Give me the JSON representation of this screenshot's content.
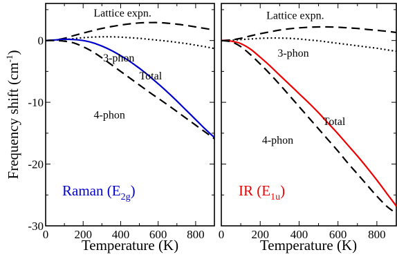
{
  "chart_data": [
    {
      "type": "line",
      "panel_label": "Raman (E",
      "panel_label_sub": "2g",
      "panel_label_close": ")",
      "panel_color": "#0000cc",
      "xlabel": "Temperature (K)",
      "ylabel": "Frequency shift (cm",
      "ylabel_sup": "-1",
      "ylabel_close": ")",
      "xlim": [
        0,
        900
      ],
      "ylim": [
        -30,
        6
      ],
      "xticks": [
        0,
        200,
        400,
        600,
        800
      ],
      "yticks": [
        -30,
        -20,
        -10,
        0
      ],
      "x": [
        0,
        50,
        100,
        150,
        200,
        250,
        300,
        350,
        400,
        450,
        500,
        550,
        600,
        650,
        700,
        750,
        800,
        850,
        900
      ],
      "series": [
        {
          "name": "Lattice expn.",
          "style": "dashed",
          "color": "#000000",
          "values": [
            0,
            0.1,
            0.35,
            0.8,
            1.2,
            1.6,
            1.95,
            2.25,
            2.5,
            2.7,
            2.85,
            2.9,
            2.9,
            2.8,
            2.65,
            2.45,
            2.2,
            1.95,
            1.7
          ]
        },
        {
          "name": "3-phon",
          "style": "dotted",
          "color": "#000000",
          "values": [
            0,
            0.05,
            0.15,
            0.3,
            0.45,
            0.55,
            0.6,
            0.6,
            0.55,
            0.45,
            0.35,
            0.2,
            0.05,
            -0.1,
            -0.3,
            -0.5,
            -0.75,
            -1.0,
            -1.3
          ]
        },
        {
          "name": "Total",
          "style": "solid",
          "color": "#0000cc",
          "values": [
            0,
            0.1,
            0.2,
            0.15,
            0,
            -0.35,
            -0.9,
            -1.6,
            -2.45,
            -3.4,
            -4.5,
            -5.7,
            -7.0,
            -8.35,
            -9.8,
            -11.3,
            -12.8,
            -14.3,
            -15.7
          ]
        },
        {
          "name": "4-phon",
          "style": "dashed",
          "color": "#000000",
          "values": [
            0,
            0,
            -0.1,
            -0.4,
            -1.0,
            -1.8,
            -2.8,
            -3.9,
            -5.0,
            -6.1,
            -7.2,
            -8.3,
            -9.35,
            -10.4,
            -11.5,
            -12.6,
            -13.7,
            -14.8,
            -15.9
          ]
        }
      ],
      "annotations": [
        {
          "text": "Lattice expn.",
          "x": 410,
          "y": 3.9,
          "color": "#000000"
        },
        {
          "text": "3-phon",
          "x": 390,
          "y": -3.4,
          "color": "#000000"
        },
        {
          "text": "Total",
          "x": 560,
          "y": -6.3,
          "color": "#0000cc"
        },
        {
          "text": "4-phon",
          "x": 340,
          "y": -12.6,
          "color": "#000000"
        }
      ]
    },
    {
      "type": "line",
      "panel_label": "IR (E",
      "panel_label_sub": "1u",
      "panel_label_close": ")",
      "panel_color": "#ee0000",
      "xlabel": "Temperature (K)",
      "ylabel": "",
      "xlim": [
        0,
        900
      ],
      "ylim": [
        -30,
        6
      ],
      "xticks": [
        0,
        200,
        400,
        600,
        800
      ],
      "yticks": [
        -30,
        -20,
        -10,
        0
      ],
      "x": [
        0,
        50,
        100,
        150,
        200,
        250,
        300,
        350,
        400,
        450,
        500,
        550,
        600,
        650,
        700,
        750,
        800,
        850,
        900
      ],
      "series": [
        {
          "name": "Lattice expn.",
          "style": "dashed",
          "color": "#000000",
          "values": [
            0,
            0.1,
            0.35,
            0.75,
            1.1,
            1.4,
            1.7,
            1.9,
            2.05,
            2.15,
            2.2,
            2.2,
            2.15,
            2.05,
            1.95,
            1.8,
            1.65,
            1.5,
            1.3
          ]
        },
        {
          "name": "3-phon",
          "style": "dotted",
          "color": "#000000",
          "values": [
            0,
            0.05,
            0.15,
            0.25,
            0.35,
            0.4,
            0.4,
            0.35,
            0.25,
            0.1,
            -0.05,
            -0.25,
            -0.45,
            -0.65,
            -0.85,
            -1.05,
            -1.25,
            -1.5,
            -1.75
          ]
        },
        {
          "name": "Total",
          "style": "solid",
          "color": "#ee0000",
          "values": [
            0,
            -0.1,
            -0.5,
            -1.4,
            -2.7,
            -4.1,
            -5.6,
            -7.1,
            -8.6,
            -10.1,
            -11.7,
            -13.4,
            -15.1,
            -16.9,
            -18.7,
            -20.6,
            -22.6,
            -24.7,
            -26.8
          ]
        },
        {
          "name": "4-phon",
          "style": "dashed",
          "color": "#000000",
          "values": [
            0,
            -0.2,
            -1.0,
            -2.3,
            -3.8,
            -5.4,
            -7.1,
            -8.9,
            -10.7,
            -12.5,
            -14.3,
            -16.1,
            -17.9,
            -19.8,
            -21.6,
            -23.4,
            -25.2,
            -26.8,
            -28.0
          ]
        }
      ],
      "annotations": [
        {
          "text": "Lattice expn.",
          "x": 380,
          "y": 3.5,
          "color": "#000000"
        },
        {
          "text": "3-phon",
          "x": 370,
          "y": -2.6,
          "color": "#000000"
        },
        {
          "text": "Total",
          "x": 580,
          "y": -13.7,
          "color": "#ee0000"
        },
        {
          "text": "4-phon",
          "x": 290,
          "y": -16.7,
          "color": "#000000"
        }
      ]
    }
  ]
}
